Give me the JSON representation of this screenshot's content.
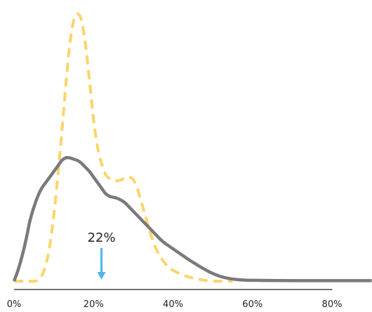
{
  "chart_data": {
    "type": "line",
    "title": "",
    "xlabel": "",
    "ylabel": "",
    "x_tick_labels": [
      "0%",
      "20%",
      "40%",
      "60%",
      "80%"
    ],
    "x_ticks": [
      0,
      20,
      40,
      60,
      80
    ],
    "xlim": [
      0,
      90
    ],
    "ylim": [
      0,
      1.0
    ],
    "grid": false,
    "legend": "none",
    "series": [
      {
        "style": "solid",
        "color": "#7a7a7e",
        "points": [
          [
            0,
            0.01
          ],
          [
            1,
            0.05
          ],
          [
            2,
            0.1
          ],
          [
            3,
            0.16
          ],
          [
            4,
            0.23
          ],
          [
            5,
            0.28
          ],
          [
            6,
            0.32
          ],
          [
            7,
            0.35
          ],
          [
            8,
            0.37
          ],
          [
            9,
            0.39
          ],
          [
            10,
            0.41
          ],
          [
            11,
            0.43
          ],
          [
            12,
            0.45
          ],
          [
            13,
            0.46
          ],
          [
            14,
            0.46
          ],
          [
            15,
            0.455
          ],
          [
            16,
            0.45
          ],
          [
            17,
            0.44
          ],
          [
            18,
            0.425
          ],
          [
            19,
            0.41
          ],
          [
            20,
            0.39
          ],
          [
            21,
            0.37
          ],
          [
            22,
            0.35
          ],
          [
            23,
            0.33
          ],
          [
            24,
            0.32
          ],
          [
            25,
            0.316
          ],
          [
            26,
            0.312
          ],
          [
            27,
            0.305
          ],
          [
            28,
            0.295
          ],
          [
            29,
            0.28
          ],
          [
            30,
            0.265
          ],
          [
            31,
            0.25
          ],
          [
            32,
            0.235
          ],
          [
            33,
            0.22
          ],
          [
            34,
            0.205
          ],
          [
            35,
            0.19
          ],
          [
            36,
            0.175
          ],
          [
            37,
            0.16
          ],
          [
            38,
            0.148
          ],
          [
            39,
            0.138
          ],
          [
            40,
            0.128
          ],
          [
            41,
            0.118
          ],
          [
            42,
            0.108
          ],
          [
            43,
            0.098
          ],
          [
            44,
            0.088
          ],
          [
            45,
            0.079
          ],
          [
            46,
            0.07
          ],
          [
            47,
            0.061
          ],
          [
            48,
            0.053
          ],
          [
            49,
            0.045
          ],
          [
            50,
            0.038
          ],
          [
            52,
            0.027
          ],
          [
            54,
            0.02
          ],
          [
            56,
            0.016
          ],
          [
            60,
            0.013
          ],
          [
            70,
            0.012
          ],
          [
            80,
            0.012
          ],
          [
            90,
            0.012
          ]
        ]
      },
      {
        "style": "dashed",
        "color": "#f9d56a",
        "points": [
          [
            0,
            0.01
          ],
          [
            2,
            0.01
          ],
          [
            4,
            0.01
          ],
          [
            6,
            0.012
          ],
          [
            7,
            0.03
          ],
          [
            8,
            0.07
          ],
          [
            9,
            0.14
          ],
          [
            10,
            0.25
          ],
          [
            11,
            0.39
          ],
          [
            12,
            0.55
          ],
          [
            13,
            0.72
          ],
          [
            14,
            0.87
          ],
          [
            15,
            0.96
          ],
          [
            16,
            0.985
          ],
          [
            17,
            0.96
          ],
          [
            18,
            0.87
          ],
          [
            19,
            0.74
          ],
          [
            20,
            0.6
          ],
          [
            21,
            0.5
          ],
          [
            22,
            0.44
          ],
          [
            23,
            0.4
          ],
          [
            24,
            0.385
          ],
          [
            25,
            0.38
          ],
          [
            26,
            0.376
          ],
          [
            27,
            0.38
          ],
          [
            28,
            0.387
          ],
          [
            29,
            0.39
          ],
          [
            30,
            0.38
          ],
          [
            31,
            0.35
          ],
          [
            32,
            0.3
          ],
          [
            33,
            0.25
          ],
          [
            34,
            0.2
          ],
          [
            35,
            0.155
          ],
          [
            36,
            0.12
          ],
          [
            37,
            0.095
          ],
          [
            38,
            0.075
          ],
          [
            39,
            0.06
          ],
          [
            40,
            0.05
          ],
          [
            42,
            0.035
          ],
          [
            44,
            0.025
          ],
          [
            46,
            0.018
          ],
          [
            48,
            0.013
          ],
          [
            50,
            0.01
          ],
          [
            52,
            0.01
          ],
          [
            55,
            0.01
          ]
        ]
      }
    ],
    "annotations": [
      {
        "label": "22%",
        "x": 22,
        "marker": "down-arrow",
        "color": "#4db8e3"
      }
    ]
  }
}
